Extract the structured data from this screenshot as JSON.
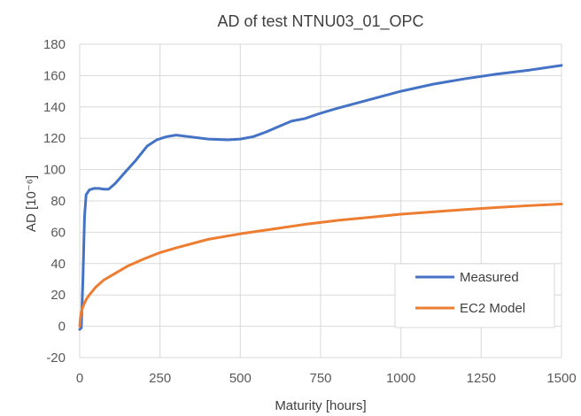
{
  "chart_data": {
    "type": "line",
    "title": "AD of test NTNU03_01_OPC",
    "xlabel": "Maturity [hours]",
    "ylabel": "AD [10⁻⁶]",
    "xlim": [
      0,
      1500
    ],
    "ylim": [
      -20,
      180
    ],
    "xticks": [
      0,
      250,
      500,
      750,
      1000,
      1250,
      1500
    ],
    "yticks": [
      -20,
      0,
      20,
      40,
      60,
      80,
      100,
      120,
      140,
      160,
      180
    ],
    "grid": true,
    "legend_position": "bottom-right",
    "series": [
      {
        "name": "Measured",
        "color": "#4472C4",
        "points": [
          [
            0,
            -2
          ],
          [
            5,
            -1
          ],
          [
            10,
            30
          ],
          [
            15,
            70
          ],
          [
            20,
            84
          ],
          [
            30,
            87
          ],
          [
            45,
            88
          ],
          [
            60,
            88
          ],
          [
            75,
            87.5
          ],
          [
            90,
            87.5
          ],
          [
            110,
            91
          ],
          [
            140,
            98
          ],
          [
            175,
            106
          ],
          [
            210,
            115
          ],
          [
            240,
            119
          ],
          [
            270,
            121
          ],
          [
            300,
            122
          ],
          [
            340,
            121
          ],
          [
            400,
            119.5
          ],
          [
            460,
            119
          ],
          [
            500,
            119.5
          ],
          [
            540,
            121
          ],
          [
            580,
            124
          ],
          [
            620,
            127.5
          ],
          [
            660,
            131
          ],
          [
            700,
            132.5
          ],
          [
            750,
            136
          ],
          [
            800,
            139
          ],
          [
            900,
            144.5
          ],
          [
            1000,
            150
          ],
          [
            1100,
            154.5
          ],
          [
            1200,
            158
          ],
          [
            1300,
            161
          ],
          [
            1400,
            163.5
          ],
          [
            1500,
            166.5
          ]
        ]
      },
      {
        "name": "EC2 Model",
        "color": "#ED7D31",
        "points": [
          [
            0,
            0
          ],
          [
            2,
            5
          ],
          [
            5,
            9
          ],
          [
            10,
            12.5
          ],
          [
            20,
            17
          ],
          [
            30,
            20
          ],
          [
            50,
            25
          ],
          [
            75,
            29.5
          ],
          [
            100,
            32.5
          ],
          [
            150,
            38.5
          ],
          [
            200,
            43
          ],
          [
            250,
            47
          ],
          [
            300,
            50
          ],
          [
            400,
            55.5
          ],
          [
            500,
            59
          ],
          [
            600,
            62
          ],
          [
            700,
            65
          ],
          [
            800,
            67.5
          ],
          [
            900,
            69.5
          ],
          [
            1000,
            71.5
          ],
          [
            1100,
            73
          ],
          [
            1200,
            74.5
          ],
          [
            1300,
            75.8
          ],
          [
            1400,
            77
          ],
          [
            1500,
            78
          ]
        ]
      }
    ]
  }
}
